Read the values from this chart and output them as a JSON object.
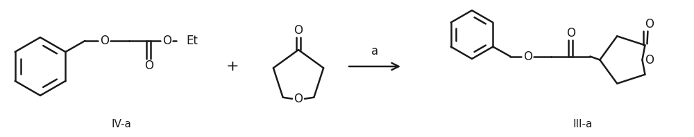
{
  "bg_color": "#ffffff",
  "line_color": "#1a1a1a",
  "line_width": 1.8,
  "font_size_label": 11,
  "font_size_atom": 12,
  "font_size_arrow_label": 12,
  "label_IV_a": "IV-a",
  "label_III_a": "III-a",
  "label_a": "a",
  "label_Et": "Et",
  "figsize": [
    10.0,
    1.98
  ],
  "dpi": 100
}
